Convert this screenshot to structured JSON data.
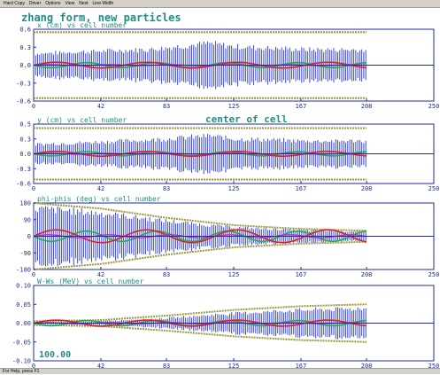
{
  "window": {
    "menu": [
      "Hard Copy",
      "Driver",
      "Options",
      "View",
      "Next",
      "Line Width"
    ],
    "status": "For Help, press F1"
  },
  "main_title": "zhang form, new particles",
  "colors": {
    "axis": "#1b2a9c",
    "beam": "#2233d4",
    "envelope": "#9a9a3c",
    "core_red": "#e02020",
    "core_green": "#20b040",
    "core_magenta": "#c020c0",
    "title": "#1f8f84"
  },
  "chart_data": [
    {
      "type": "scatter",
      "title": "x (cm) vs cell number",
      "xlabel": "cell number",
      "ylabel": "x (cm)",
      "xlim": [
        0,
        250
      ],
      "ylim": [
        -0.6,
        0.6
      ],
      "xticks": [
        "0",
        "42",
        "83",
        "125",
        "167",
        "208",
        "250"
      ],
      "yticks": [
        "0.6",
        "0.3",
        "0.0",
        "-0.3",
        "-0.6"
      ],
      "envelope": [
        [
          0,
          0.55
        ],
        [
          208,
          0.55
        ]
      ],
      "beam_halfwidth": [
        [
          0,
          0.22
        ],
        [
          30,
          0.26
        ],
        [
          70,
          0.3
        ],
        [
          110,
          0.42
        ],
        [
          125,
          0.36
        ],
        [
          170,
          0.3
        ],
        [
          208,
          0.3
        ]
      ],
      "annotation": ""
    },
    {
      "type": "scatter",
      "title": "y (cm) vs cell number",
      "xlabel": "cell number",
      "ylabel": "y (cm)",
      "xlim": [
        0,
        250
      ],
      "ylim": [
        -0.6,
        0.6
      ],
      "xticks": [
        "0",
        "42",
        "83",
        "125",
        "167",
        "208",
        "250"
      ],
      "yticks": [
        "0.5",
        "0.3",
        "0.0",
        "-0.3",
        "-0.6"
      ],
      "envelope": [
        [
          0,
          0.52
        ],
        [
          208,
          0.52
        ]
      ],
      "beam_halfwidth": [
        [
          0,
          0.22
        ],
        [
          30,
          0.26
        ],
        [
          70,
          0.32
        ],
        [
          110,
          0.42
        ],
        [
          125,
          0.35
        ],
        [
          170,
          0.3
        ],
        [
          208,
          0.3
        ]
      ],
      "annotation": "center of cell"
    },
    {
      "type": "scatter",
      "title": "phi-phis (deg) vs cell number",
      "xlabel": "cell number",
      "ylabel": "phi-phis (deg)",
      "xlim": [
        0,
        250
      ],
      "ylim": [
        -180,
        180
      ],
      "xticks": [
        "0",
        "42",
        "83",
        "125",
        "167",
        "208",
        "250"
      ],
      "yticks": [
        "180",
        "90",
        "0",
        "-90",
        "-180"
      ],
      "envelope": [
        [
          0,
          180
        ],
        [
          42,
          150
        ],
        [
          83,
          100
        ],
        [
          125,
          60
        ],
        [
          167,
          40
        ],
        [
          208,
          30
        ]
      ],
      "beam_halfwidth": [
        [
          0,
          175
        ],
        [
          42,
          145
        ],
        [
          83,
          95
        ],
        [
          125,
          55
        ],
        [
          167,
          38
        ],
        [
          208,
          28
        ]
      ],
      "annotation": ""
    },
    {
      "type": "scatter",
      "title": "W-Ws (MeV) vs cell number",
      "xlabel": "cell number",
      "ylabel": "W-Ws (MeV)",
      "xlim": [
        0,
        250
      ],
      "ylim": [
        -0.1,
        0.1
      ],
      "xticks": [
        "0",
        "42",
        "83",
        "125",
        "167",
        "208",
        "250"
      ],
      "yticks": [
        "0.10",
        "0.05",
        "0.00",
        "-0.05",
        "-0.10"
      ],
      "envelope": [
        [
          0,
          0.005
        ],
        [
          42,
          0.008
        ],
        [
          83,
          0.02
        ],
        [
          125,
          0.035
        ],
        [
          167,
          0.045
        ],
        [
          208,
          0.05
        ]
      ],
      "beam_halfwidth": [
        [
          0,
          0.002
        ],
        [
          42,
          0.006
        ],
        [
          83,
          0.015
        ],
        [
          125,
          0.03
        ],
        [
          167,
          0.04
        ],
        [
          208,
          0.045
        ]
      ],
      "annotation": "100.00"
    }
  ]
}
